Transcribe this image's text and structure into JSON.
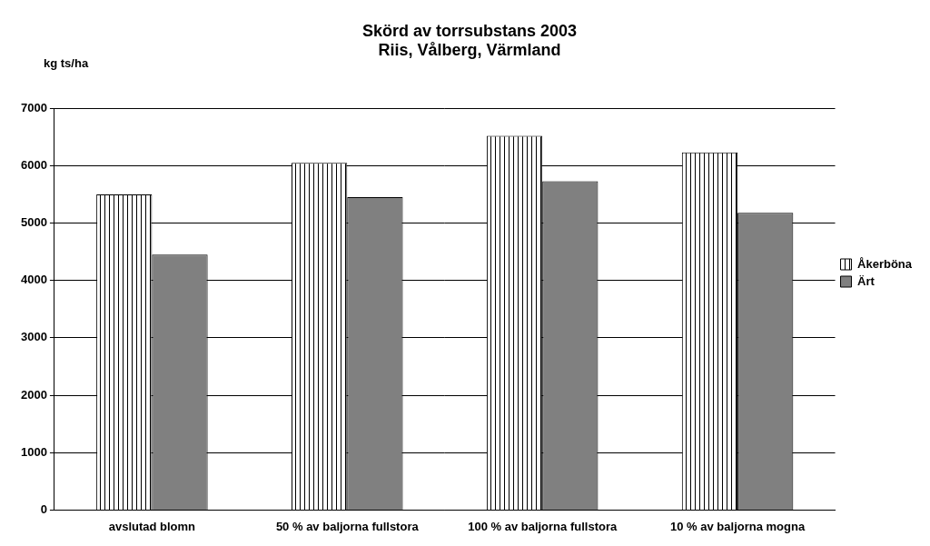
{
  "chart_data": {
    "type": "bar",
    "title": "Skörd av torrsubstans 2003",
    "subtitle": "Riis, Vålberg, Värmland",
    "y_label": "kg ts/ha",
    "categories": [
      "avslutad blomn",
      "50 % av baljorna fullstora",
      "100 % av baljorna fullstora",
      "10 % av baljorna mogna"
    ],
    "series": [
      {
        "name": "Åkerböna",
        "color": "#ffffff",
        "values": [
          5500,
          6050,
          6520,
          6230
        ]
      },
      {
        "name": "Ärt",
        "color": "#808080",
        "values": [
          4450,
          5450,
          5730,
          5180
        ]
      }
    ],
    "ylim": [
      0,
      7000
    ],
    "yticks": [
      0,
      1000,
      2000,
      3000,
      4000,
      5000,
      6000,
      7000
    ],
    "grid": true,
    "legend": "right"
  }
}
